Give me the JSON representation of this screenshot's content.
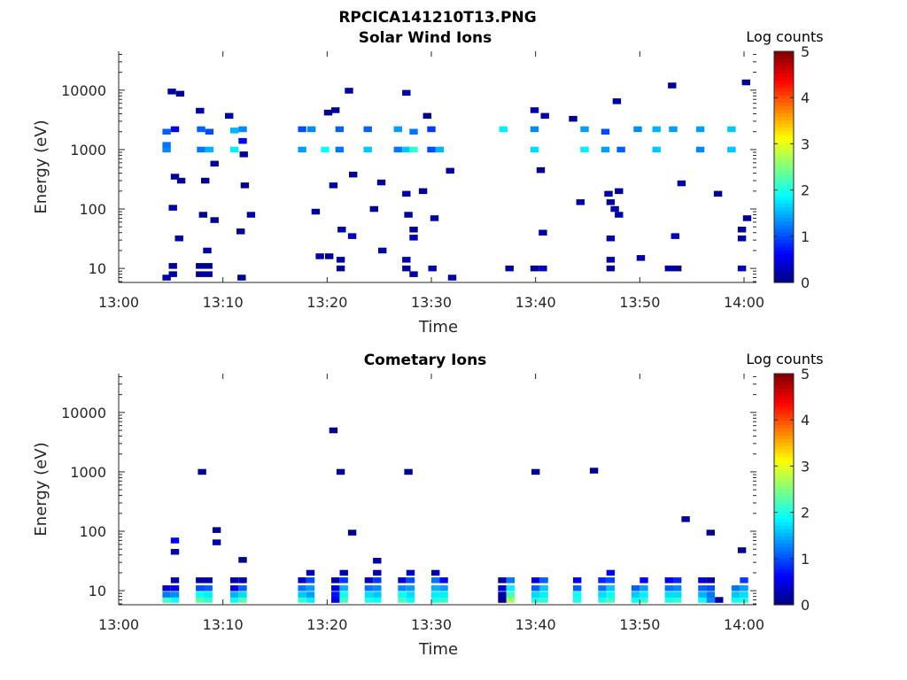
{
  "figure_title": "RPCICA141210T13.PNG",
  "chart_data": [
    {
      "type": "heatmap",
      "title": "Solar Wind Ions",
      "xlabel": "Time",
      "ylabel": "Energy (eV)",
      "x_ticks": [
        "13:00",
        "13:10",
        "13:20",
        "13:30",
        "13:40",
        "13:50",
        "14:00"
      ],
      "x_range_min": [
        0,
        61
      ],
      "y_ticks": [
        10,
        100,
        1000,
        10000
      ],
      "y_range_eV": [
        5.8,
        45000
      ],
      "y_scale": "log",
      "colorbar": {
        "label": "Log counts",
        "ticks": [
          0,
          1,
          2,
          3,
          4,
          5
        ],
        "range": [
          0,
          5
        ],
        "colormap": "jet"
      },
      "cells": [
        [
          4.6,
          7,
          0.2
        ],
        [
          5.2,
          11,
          0.1
        ],
        [
          5.2,
          8,
          0.2
        ],
        [
          7.8,
          11,
          0.1
        ],
        [
          7.8,
          8,
          0.1
        ],
        [
          8.6,
          11,
          0.1
        ],
        [
          8.6,
          8,
          0.2
        ],
        [
          11.8,
          7,
          0.1
        ],
        [
          19.3,
          16,
          0.2
        ],
        [
          20.2,
          16,
          0.1
        ],
        [
          21.3,
          10,
          0.1
        ],
        [
          21.3,
          14,
          0.2
        ],
        [
          27.6,
          10,
          0.1
        ],
        [
          27.6,
          14,
          0.2
        ],
        [
          28.3,
          8,
          0.2
        ],
        [
          30.1,
          10,
          0.2
        ],
        [
          32.0,
          7,
          0.2
        ],
        [
          37.5,
          10,
          0.2
        ],
        [
          39.9,
          10,
          0.1
        ],
        [
          40.7,
          10,
          0.3
        ],
        [
          47.2,
          10,
          0.1
        ],
        [
          47.2,
          14,
          0.2
        ],
        [
          50.1,
          15,
          0.2
        ],
        [
          52.8,
          10,
          0.2
        ],
        [
          53.6,
          10,
          0.1
        ],
        [
          59.8,
          10,
          0.3
        ],
        [
          4.6,
          1000,
          1.3
        ],
        [
          4.6,
          1200,
          1.2
        ],
        [
          4.6,
          2000,
          1.1
        ],
        [
          5.4,
          2200,
          0.6
        ],
        [
          7.9,
          1000,
          1.2
        ],
        [
          7.9,
          2200,
          1.1
        ],
        [
          8.7,
          1000,
          1.5
        ],
        [
          8.7,
          2000,
          1.0
        ],
        [
          11.1,
          1000,
          1.8
        ],
        [
          11.1,
          2100,
          1.5
        ],
        [
          11.9,
          2200,
          1.3
        ],
        [
          11.9,
          1400,
          0.6
        ],
        [
          17.6,
          1000,
          1.4
        ],
        [
          17.6,
          2200,
          1.0
        ],
        [
          18.5,
          2200,
          1.3
        ],
        [
          19.8,
          1000,
          1.9
        ],
        [
          21.2,
          1000,
          1.2
        ],
        [
          21.2,
          2200,
          1.1
        ],
        [
          23.9,
          1000,
          1.6
        ],
        [
          23.9,
          2200,
          1.1
        ],
        [
          26.8,
          1000,
          1.2
        ],
        [
          26.8,
          2200,
          1.4
        ],
        [
          27.6,
          1000,
          1.6
        ],
        [
          28.3,
          1000,
          2.1
        ],
        [
          28.3,
          2000,
          1.2
        ],
        [
          30.0,
          1000,
          1.0
        ],
        [
          30.0,
          2200,
          0.9
        ],
        [
          30.8,
          1000,
          1.5
        ],
        [
          36.9,
          2200,
          1.8
        ],
        [
          39.9,
          1000,
          1.7
        ],
        [
          39.9,
          2200,
          1.3
        ],
        [
          44.7,
          1000,
          1.8
        ],
        [
          44.7,
          2200,
          1.4
        ],
        [
          46.7,
          1000,
          1.4
        ],
        [
          46.7,
          2000,
          1.0
        ],
        [
          48.2,
          1000,
          1.1
        ],
        [
          49.8,
          2200,
          1.3
        ],
        [
          51.6,
          1000,
          1.6
        ],
        [
          51.6,
          2200,
          1.5
        ],
        [
          53.2,
          2200,
          1.4
        ],
        [
          55.8,
          1000,
          1.3
        ],
        [
          55.8,
          2200,
          1.4
        ],
        [
          58.8,
          1000,
          1.6
        ],
        [
          58.8,
          2200,
          1.6
        ],
        [
          5.1,
          9500,
          0.2
        ],
        [
          5.9,
          8700,
          0.1
        ],
        [
          7.8,
          4500,
          0.2
        ],
        [
          9.2,
          580,
          0.1
        ],
        [
          10.6,
          3700,
          0.2
        ],
        [
          12.0,
          830,
          0.2
        ],
        [
          20.1,
          4200,
          0.1
        ],
        [
          20.8,
          4600,
          0.1
        ],
        [
          22.1,
          9800,
          0.2
        ],
        [
          27.6,
          9000,
          0.2
        ],
        [
          29.6,
          3700,
          0.1
        ],
        [
          39.9,
          4600,
          0.2
        ],
        [
          40.9,
          3700,
          0.2
        ],
        [
          43.6,
          3300,
          0.1
        ],
        [
          47.8,
          6500,
          0.2
        ],
        [
          53.1,
          12000,
          0.1
        ],
        [
          60.2,
          13500,
          0.1
        ],
        [
          5.4,
          350,
          0.1
        ],
        [
          6.0,
          300,
          0.2
        ],
        [
          8.3,
          300,
          0.1
        ],
        [
          12.1,
          250,
          0.1
        ],
        [
          20.6,
          250,
          0.2
        ],
        [
          22.5,
          380,
          0.1
        ],
        [
          25.2,
          280,
          0.2
        ],
        [
          27.6,
          180,
          0.2
        ],
        [
          29.2,
          200,
          0.1
        ],
        [
          31.8,
          440,
          0.2
        ],
        [
          40.5,
          450,
          0.1
        ],
        [
          44.3,
          130,
          0.2
        ],
        [
          47.0,
          180,
          0.2
        ],
        [
          48.0,
          200,
          0.1
        ],
        [
          54.0,
          270,
          0.2
        ],
        [
          57.5,
          180,
          0.1
        ],
        [
          5.2,
          105,
          0.2
        ],
        [
          8.1,
          80,
          0.1
        ],
        [
          9.2,
          65,
          0.1
        ],
        [
          12.7,
          80,
          0.2
        ],
        [
          18.9,
          90,
          0.1
        ],
        [
          21.4,
          45,
          0.2
        ],
        [
          22.4,
          35,
          0.3
        ],
        [
          24.5,
          100,
          0.1
        ],
        [
          27.8,
          80,
          0.2
        ],
        [
          28.3,
          45,
          0.1
        ],
        [
          30.3,
          70,
          0.2
        ],
        [
          40.7,
          40,
          0.2
        ],
        [
          47.2,
          130,
          0.1
        ],
        [
          47.6,
          100,
          0.2
        ],
        [
          48.0,
          80,
          0.2
        ],
        [
          53.4,
          35,
          0.3
        ],
        [
          60.3,
          70,
          0.1
        ],
        [
          5.8,
          32,
          0.2
        ],
        [
          8.5,
          20,
          0.2
        ],
        [
          11.7,
          42,
          0.1
        ],
        [
          25.3,
          20,
          0.2
        ],
        [
          28.3,
          33,
          0.3
        ],
        [
          47.2,
          32,
          0.2
        ],
        [
          59.8,
          32,
          0.2
        ],
        [
          59.8,
          45,
          0.1
        ]
      ]
    },
    {
      "type": "heatmap",
      "title": "Cometary Ions",
      "xlabel": "Time",
      "ylabel": "Energy (eV)",
      "x_ticks": [
        "13:00",
        "13:10",
        "13:20",
        "13:30",
        "13:40",
        "13:50",
        "14:00"
      ],
      "x_range_min": [
        0,
        61
      ],
      "y_ticks": [
        10,
        100,
        1000,
        10000
      ],
      "y_range_eV": [
        5.8,
        45000
      ],
      "y_scale": "log",
      "colorbar": {
        "label": "Log counts",
        "ticks": [
          0,
          1,
          2,
          3,
          4,
          5
        ],
        "range": [
          0,
          5
        ],
        "colormap": "jet"
      },
      "cells": [
        [
          4.6,
          7,
          2.2
        ],
        [
          4.6,
          8.6,
          1.2
        ],
        [
          4.6,
          11,
          0.4
        ],
        [
          5.4,
          7,
          1.9
        ],
        [
          5.4,
          8.6,
          1.3
        ],
        [
          5.4,
          11,
          0.5
        ],
        [
          5.4,
          15,
          0.2
        ],
        [
          7.8,
          7,
          2.3
        ],
        [
          7.8,
          8.6,
          1.9
        ],
        [
          7.8,
          11,
          1.0
        ],
        [
          7.8,
          15,
          0.2
        ],
        [
          8.6,
          7,
          2.1
        ],
        [
          8.6,
          8.6,
          1.8
        ],
        [
          8.6,
          11,
          1.1
        ],
        [
          8.6,
          15,
          0.2
        ],
        [
          11.1,
          7,
          1.9
        ],
        [
          11.1,
          8.6,
          1.5
        ],
        [
          11.1,
          11,
          0.5
        ],
        [
          11.1,
          15,
          0.2
        ],
        [
          11.9,
          7,
          2.3
        ],
        [
          11.9,
          8.6,
          1.7
        ],
        [
          11.9,
          11,
          1.1
        ],
        [
          11.9,
          15,
          0.2
        ],
        [
          17.6,
          7,
          2.1
        ],
        [
          17.6,
          8.6,
          1.6
        ],
        [
          17.6,
          11,
          1.2
        ],
        [
          17.6,
          15,
          0.3
        ],
        [
          18.4,
          7,
          1.8
        ],
        [
          18.4,
          8.6,
          1.4
        ],
        [
          18.4,
          11,
          1.4
        ],
        [
          18.4,
          15,
          1.0
        ],
        [
          18.4,
          20,
          0.2
        ],
        [
          20.8,
          7,
          0.5
        ],
        [
          20.8,
          8.6,
          0.7
        ],
        [
          20.8,
          11,
          0.5
        ],
        [
          20.8,
          15,
          0.2
        ],
        [
          21.6,
          7,
          2.2
        ],
        [
          21.6,
          8.6,
          1.9
        ],
        [
          21.6,
          11,
          1.5
        ],
        [
          21.6,
          15,
          0.9
        ],
        [
          21.6,
          20,
          0.2
        ],
        [
          24.0,
          7,
          2.0
        ],
        [
          24.0,
          8.6,
          1.7
        ],
        [
          24.0,
          11,
          1.2
        ],
        [
          24.0,
          15,
          0.3
        ],
        [
          24.8,
          7,
          1.9
        ],
        [
          24.8,
          8.6,
          1.6
        ],
        [
          24.8,
          11,
          1.3
        ],
        [
          24.8,
          15,
          0.9
        ],
        [
          24.8,
          20,
          0.2
        ],
        [
          27.2,
          7,
          2.2
        ],
        [
          27.2,
          8.6,
          1.9
        ],
        [
          27.2,
          11,
          1.3
        ],
        [
          27.2,
          15,
          0.4
        ],
        [
          28.0,
          7,
          1.9
        ],
        [
          28.0,
          8.6,
          1.7
        ],
        [
          28.0,
          11,
          1.4
        ],
        [
          28.0,
          15,
          1.0
        ],
        [
          28.0,
          20,
          0.3
        ],
        [
          30.4,
          7,
          2.0
        ],
        [
          30.4,
          8.6,
          1.8
        ],
        [
          30.4,
          11,
          1.5
        ],
        [
          30.4,
          15,
          1.2
        ],
        [
          30.4,
          20,
          0.2
        ],
        [
          31.2,
          7,
          2.1
        ],
        [
          31.2,
          8.6,
          1.8
        ],
        [
          31.2,
          11,
          1.4
        ],
        [
          31.2,
          15,
          0.6
        ],
        [
          36.8,
          7,
          0.1
        ],
        [
          36.8,
          8.6,
          0.2
        ],
        [
          36.8,
          11,
          0.4
        ],
        [
          36.8,
          15,
          0.2
        ],
        [
          37.6,
          7,
          2.7
        ],
        [
          37.6,
          8.6,
          2.2
        ],
        [
          37.6,
          11,
          1.8
        ],
        [
          37.6,
          15,
          1.2
        ],
        [
          40.0,
          7,
          2.0
        ],
        [
          40.0,
          8.6,
          1.7
        ],
        [
          40.0,
          11,
          1.1
        ],
        [
          40.0,
          15,
          0.4
        ],
        [
          40.8,
          7,
          2.1
        ],
        [
          40.8,
          8.6,
          1.8
        ],
        [
          40.8,
          11,
          1.6
        ],
        [
          40.8,
          15,
          1.1
        ],
        [
          44.0,
          7,
          2.0
        ],
        [
          44.0,
          8.6,
          1.9
        ],
        [
          44.0,
          11,
          1.1
        ],
        [
          44.0,
          15,
          0.5
        ],
        [
          46.4,
          7,
          2.0
        ],
        [
          46.4,
          8.6,
          1.7
        ],
        [
          46.4,
          11,
          1.2
        ],
        [
          46.4,
          15,
          0.8
        ],
        [
          47.2,
          7,
          2.2
        ],
        [
          47.2,
          8.6,
          1.9
        ],
        [
          47.2,
          11,
          1.6
        ],
        [
          47.2,
          15,
          1.0
        ],
        [
          47.2,
          20,
          0.5
        ],
        [
          49.6,
          7,
          1.9
        ],
        [
          49.6,
          8.6,
          1.6
        ],
        [
          49.6,
          11,
          1.1
        ],
        [
          50.4,
          7,
          2.1
        ],
        [
          50.4,
          8.6,
          1.8
        ],
        [
          50.4,
          11,
          1.4
        ],
        [
          50.4,
          15,
          0.6
        ],
        [
          52.8,
          7,
          2.0
        ],
        [
          52.8,
          8.6,
          1.7
        ],
        [
          52.8,
          11,
          1.2
        ],
        [
          52.8,
          15,
          0.5
        ],
        [
          53.6,
          7,
          2.1
        ],
        [
          53.6,
          8.6,
          1.7
        ],
        [
          53.6,
          11,
          1.3
        ],
        [
          53.6,
          15,
          0.8
        ],
        [
          56.0,
          7,
          1.9
        ],
        [
          56.0,
          8.6,
          1.5
        ],
        [
          56.0,
          11,
          1.1
        ],
        [
          56.0,
          15,
          0.4
        ],
        [
          56.8,
          7,
          1.3
        ],
        [
          56.8,
          8.6,
          1.2
        ],
        [
          56.8,
          11,
          1.0
        ],
        [
          56.8,
          15,
          0.2
        ],
        [
          57.6,
          7,
          0.1
        ],
        [
          59.2,
          7,
          1.9
        ],
        [
          59.2,
          8.6,
          1.6
        ],
        [
          59.2,
          11,
          1.2
        ],
        [
          60.0,
          7,
          2.0
        ],
        [
          60.0,
          8.6,
          1.7
        ],
        [
          60.0,
          11,
          1.4
        ],
        [
          60.0,
          15,
          0.9
        ],
        [
          5.4,
          45,
          0.2
        ],
        [
          5.4,
          70,
          0.6
        ],
        [
          8.0,
          1000,
          0.1
        ],
        [
          9.4,
          105,
          0.1
        ],
        [
          9.4,
          65,
          0.2
        ],
        [
          11.9,
          33,
          0.1
        ],
        [
          20.6,
          5000,
          0.1
        ],
        [
          21.3,
          1000,
          0.1
        ],
        [
          22.4,
          95,
          0.1
        ],
        [
          24.8,
          32,
          0.2
        ],
        [
          27.8,
          1000,
          0.1
        ],
        [
          40.0,
          1000,
          0.1
        ],
        [
          45.6,
          1050,
          0.1
        ],
        [
          54.4,
          160,
          0.2
        ],
        [
          56.8,
          95,
          0.1
        ],
        [
          59.8,
          48,
          0.1
        ]
      ]
    }
  ]
}
